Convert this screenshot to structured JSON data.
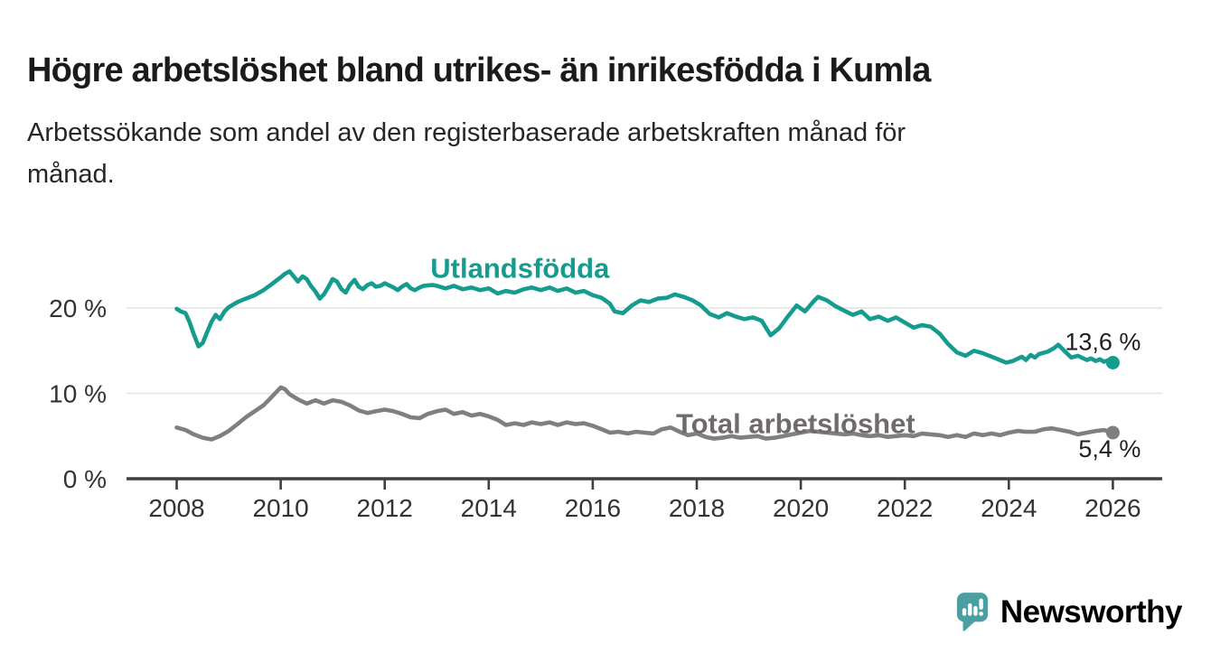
{
  "header": {
    "title": "Högre arbetslöshet bland utrikes- än inrikesfödda i Kumla",
    "subtitle_lines": [
      "Arbetssökande som andel av den registerbaserade arbetskraften månad för",
      "månad."
    ]
  },
  "chart_data": {
    "type": "line",
    "unit": "percent",
    "grid": "horizontal",
    "legend_position": "inline-labels",
    "xlim": [
      2007.35,
      2026.95
    ],
    "ylim": [
      0,
      28
    ],
    "x_ticks": [
      2008,
      2010,
      2012,
      2014,
      2016,
      2018,
      2020,
      2022,
      2024,
      2026
    ],
    "y_ticks": [
      {
        "value": 0,
        "label": "0 %"
      },
      {
        "value": 10,
        "label": "10 %"
      },
      {
        "value": 20,
        "label": "20 %"
      }
    ],
    "axis_color": "#3f3f3f",
    "grid_color": "#e2e2e2",
    "tick_text_color": "#333333",
    "annotation_color": "#1f1f1f",
    "series": [
      {
        "name": "Utlandsfödda",
        "color": "#169b8f",
        "label_color": "#169b8f",
        "end_label": "13,6 %",
        "end_value": 13.6,
        "label_pos": {
          "year": 2014.6,
          "value": 24.6
        },
        "points": [
          [
            2008.0,
            19.9
          ],
          [
            2008.08,
            19.6
          ],
          [
            2008.17,
            19.4
          ],
          [
            2008.25,
            18.3
          ],
          [
            2008.33,
            16.9
          ],
          [
            2008.42,
            15.5
          ],
          [
            2008.5,
            15.9
          ],
          [
            2008.58,
            17.1
          ],
          [
            2008.67,
            18.4
          ],
          [
            2008.75,
            19.2
          ],
          [
            2008.83,
            18.7
          ],
          [
            2008.92,
            19.6
          ],
          [
            2009.0,
            20.1
          ],
          [
            2009.17,
            20.7
          ],
          [
            2009.33,
            21.1
          ],
          [
            2009.5,
            21.5
          ],
          [
            2009.67,
            22.1
          ],
          [
            2009.83,
            22.8
          ],
          [
            2010.0,
            23.6
          ],
          [
            2010.08,
            24.0
          ],
          [
            2010.17,
            24.3
          ],
          [
            2010.25,
            23.7
          ],
          [
            2010.33,
            23.1
          ],
          [
            2010.42,
            23.7
          ],
          [
            2010.5,
            23.4
          ],
          [
            2010.58,
            22.6
          ],
          [
            2010.67,
            21.9
          ],
          [
            2010.75,
            21.1
          ],
          [
            2010.83,
            21.6
          ],
          [
            2010.92,
            22.5
          ],
          [
            2011.0,
            23.4
          ],
          [
            2011.08,
            23.1
          ],
          [
            2011.17,
            22.2
          ],
          [
            2011.25,
            21.8
          ],
          [
            2011.33,
            22.7
          ],
          [
            2011.42,
            23.3
          ],
          [
            2011.5,
            22.5
          ],
          [
            2011.58,
            22.2
          ],
          [
            2011.67,
            22.7
          ],
          [
            2011.75,
            22.9
          ],
          [
            2011.83,
            22.5
          ],
          [
            2011.92,
            22.6
          ],
          [
            2012.0,
            22.9
          ],
          [
            2012.17,
            22.4
          ],
          [
            2012.25,
            22.1
          ],
          [
            2012.33,
            22.5
          ],
          [
            2012.42,
            22.8
          ],
          [
            2012.5,
            22.3
          ],
          [
            2012.58,
            22.1
          ],
          [
            2012.67,
            22.4
          ],
          [
            2012.75,
            22.6
          ],
          [
            2012.92,
            22.7
          ],
          [
            2013.0,
            22.6
          ],
          [
            2013.17,
            22.3
          ],
          [
            2013.33,
            22.6
          ],
          [
            2013.5,
            22.2
          ],
          [
            2013.67,
            22.4
          ],
          [
            2013.83,
            22.1
          ],
          [
            2014.0,
            22.3
          ],
          [
            2014.17,
            21.7
          ],
          [
            2014.33,
            22.0
          ],
          [
            2014.5,
            21.8
          ],
          [
            2014.67,
            22.2
          ],
          [
            2014.83,
            22.4
          ],
          [
            2015.0,
            22.1
          ],
          [
            2015.17,
            22.4
          ],
          [
            2015.33,
            22.0
          ],
          [
            2015.5,
            22.3
          ],
          [
            2015.67,
            21.8
          ],
          [
            2015.83,
            22.0
          ],
          [
            2016.0,
            21.5
          ],
          [
            2016.17,
            21.2
          ],
          [
            2016.33,
            20.5
          ],
          [
            2016.42,
            19.6
          ],
          [
            2016.58,
            19.4
          ],
          [
            2016.75,
            20.3
          ],
          [
            2016.92,
            20.9
          ],
          [
            2017.08,
            20.7
          ],
          [
            2017.25,
            21.1
          ],
          [
            2017.42,
            21.2
          ],
          [
            2017.58,
            21.6
          ],
          [
            2017.75,
            21.3
          ],
          [
            2017.92,
            20.9
          ],
          [
            2018.08,
            20.3
          ],
          [
            2018.25,
            19.3
          ],
          [
            2018.42,
            18.9
          ],
          [
            2018.58,
            19.4
          ],
          [
            2018.75,
            19.0
          ],
          [
            2018.92,
            18.7
          ],
          [
            2019.08,
            18.9
          ],
          [
            2019.25,
            18.5
          ],
          [
            2019.42,
            16.8
          ],
          [
            2019.58,
            17.6
          ],
          [
            2019.75,
            19.0
          ],
          [
            2019.92,
            20.3
          ],
          [
            2020.08,
            19.6
          ],
          [
            2020.25,
            20.8
          ],
          [
            2020.33,
            21.3
          ],
          [
            2020.5,
            20.9
          ],
          [
            2020.67,
            20.2
          ],
          [
            2020.83,
            19.7
          ],
          [
            2021.0,
            19.2
          ],
          [
            2021.17,
            19.6
          ],
          [
            2021.33,
            18.7
          ],
          [
            2021.5,
            19.0
          ],
          [
            2021.67,
            18.5
          ],
          [
            2021.83,
            18.9
          ],
          [
            2022.0,
            18.3
          ],
          [
            2022.17,
            17.7
          ],
          [
            2022.33,
            18.0
          ],
          [
            2022.5,
            17.8
          ],
          [
            2022.67,
            17.0
          ],
          [
            2022.83,
            15.8
          ],
          [
            2023.0,
            14.8
          ],
          [
            2023.17,
            14.4
          ],
          [
            2023.33,
            15.0
          ],
          [
            2023.5,
            14.7
          ],
          [
            2023.67,
            14.3
          ],
          [
            2023.83,
            13.9
          ],
          [
            2023.95,
            13.6
          ],
          [
            2024.08,
            13.8
          ],
          [
            2024.25,
            14.3
          ],
          [
            2024.33,
            13.9
          ],
          [
            2024.42,
            14.5
          ],
          [
            2024.5,
            14.2
          ],
          [
            2024.58,
            14.6
          ],
          [
            2024.75,
            14.9
          ],
          [
            2024.87,
            15.3
          ],
          [
            2024.95,
            15.7
          ],
          [
            2025.08,
            14.9
          ],
          [
            2025.2,
            14.2
          ],
          [
            2025.33,
            14.4
          ],
          [
            2025.5,
            13.9
          ],
          [
            2025.58,
            14.1
          ],
          [
            2025.67,
            13.8
          ],
          [
            2025.75,
            14.0
          ],
          [
            2025.83,
            13.7
          ],
          [
            2025.92,
            13.9
          ],
          [
            2026.0,
            13.6
          ]
        ]
      },
      {
        "name": "Total arbetslöshet",
        "color": "#7f7f7f",
        "label_color": "#6f6b6b",
        "end_label": "5,4 %",
        "end_value": 5.4,
        "label_pos": {
          "year": 2019.9,
          "value": 6.4
        },
        "points": [
          [
            2008.0,
            6.0
          ],
          [
            2008.17,
            5.7
          ],
          [
            2008.33,
            5.2
          ],
          [
            2008.5,
            4.8
          ],
          [
            2008.67,
            4.6
          ],
          [
            2008.83,
            5.0
          ],
          [
            2009.0,
            5.6
          ],
          [
            2009.17,
            6.4
          ],
          [
            2009.33,
            7.2
          ],
          [
            2009.5,
            7.9
          ],
          [
            2009.67,
            8.6
          ],
          [
            2009.83,
            9.6
          ],
          [
            2010.0,
            10.7
          ],
          [
            2010.08,
            10.5
          ],
          [
            2010.17,
            9.9
          ],
          [
            2010.33,
            9.3
          ],
          [
            2010.5,
            8.8
          ],
          [
            2010.67,
            9.2
          ],
          [
            2010.83,
            8.8
          ],
          [
            2011.0,
            9.2
          ],
          [
            2011.17,
            9.0
          ],
          [
            2011.33,
            8.6
          ],
          [
            2011.5,
            8.0
          ],
          [
            2011.67,
            7.7
          ],
          [
            2011.83,
            7.9
          ],
          [
            2012.0,
            8.1
          ],
          [
            2012.17,
            7.9
          ],
          [
            2012.33,
            7.6
          ],
          [
            2012.5,
            7.2
          ],
          [
            2012.67,
            7.1
          ],
          [
            2012.83,
            7.6
          ],
          [
            2013.0,
            7.9
          ],
          [
            2013.17,
            8.1
          ],
          [
            2013.33,
            7.6
          ],
          [
            2013.5,
            7.8
          ],
          [
            2013.67,
            7.4
          ],
          [
            2013.83,
            7.6
          ],
          [
            2014.0,
            7.3
          ],
          [
            2014.17,
            6.9
          ],
          [
            2014.33,
            6.3
          ],
          [
            2014.5,
            6.5
          ],
          [
            2014.67,
            6.3
          ],
          [
            2014.83,
            6.6
          ],
          [
            2015.0,
            6.4
          ],
          [
            2015.17,
            6.6
          ],
          [
            2015.33,
            6.3
          ],
          [
            2015.5,
            6.6
          ],
          [
            2015.67,
            6.4
          ],
          [
            2015.83,
            6.5
          ],
          [
            2016.0,
            6.2
          ],
          [
            2016.17,
            5.8
          ],
          [
            2016.33,
            5.4
          ],
          [
            2016.5,
            5.5
          ],
          [
            2016.67,
            5.3
          ],
          [
            2016.83,
            5.5
          ],
          [
            2017.0,
            5.4
          ],
          [
            2017.17,
            5.3
          ],
          [
            2017.33,
            5.8
          ],
          [
            2017.5,
            6.0
          ],
          [
            2017.67,
            5.5
          ],
          [
            2017.83,
            5.1
          ],
          [
            2018.0,
            5.3
          ],
          [
            2018.17,
            4.9
          ],
          [
            2018.33,
            4.7
          ],
          [
            2018.5,
            4.8
          ],
          [
            2018.67,
            5.0
          ],
          [
            2018.83,
            4.8
          ],
          [
            2019.0,
            4.9
          ],
          [
            2019.17,
            5.0
          ],
          [
            2019.33,
            4.7
          ],
          [
            2019.5,
            4.8
          ],
          [
            2019.67,
            5.0
          ],
          [
            2019.83,
            5.2
          ],
          [
            2020.0,
            5.4
          ],
          [
            2020.17,
            5.6
          ],
          [
            2020.33,
            5.5
          ],
          [
            2020.5,
            5.4
          ],
          [
            2020.67,
            5.3
          ],
          [
            2020.83,
            5.2
          ],
          [
            2021.0,
            5.3
          ],
          [
            2021.17,
            5.1
          ],
          [
            2021.33,
            5.0
          ],
          [
            2021.5,
            5.1
          ],
          [
            2021.67,
            4.9
          ],
          [
            2021.83,
            5.0
          ],
          [
            2022.0,
            5.1
          ],
          [
            2022.17,
            5.0
          ],
          [
            2022.33,
            5.3
          ],
          [
            2022.5,
            5.2
          ],
          [
            2022.67,
            5.1
          ],
          [
            2022.83,
            4.9
          ],
          [
            2023.0,
            5.1
          ],
          [
            2023.17,
            4.9
          ],
          [
            2023.33,
            5.3
          ],
          [
            2023.5,
            5.1
          ],
          [
            2023.67,
            5.3
          ],
          [
            2023.83,
            5.1
          ],
          [
            2024.0,
            5.4
          ],
          [
            2024.17,
            5.6
          ],
          [
            2024.33,
            5.5
          ],
          [
            2024.5,
            5.5
          ],
          [
            2024.67,
            5.8
          ],
          [
            2024.83,
            5.9
          ],
          [
            2025.0,
            5.7
          ],
          [
            2025.17,
            5.5
          ],
          [
            2025.33,
            5.2
          ],
          [
            2025.5,
            5.4
          ],
          [
            2025.67,
            5.6
          ],
          [
            2025.83,
            5.7
          ],
          [
            2026.0,
            5.4
          ]
        ]
      }
    ]
  },
  "footer": {
    "brand": "Newsworthy",
    "brand_color": "#4c9fa1"
  }
}
